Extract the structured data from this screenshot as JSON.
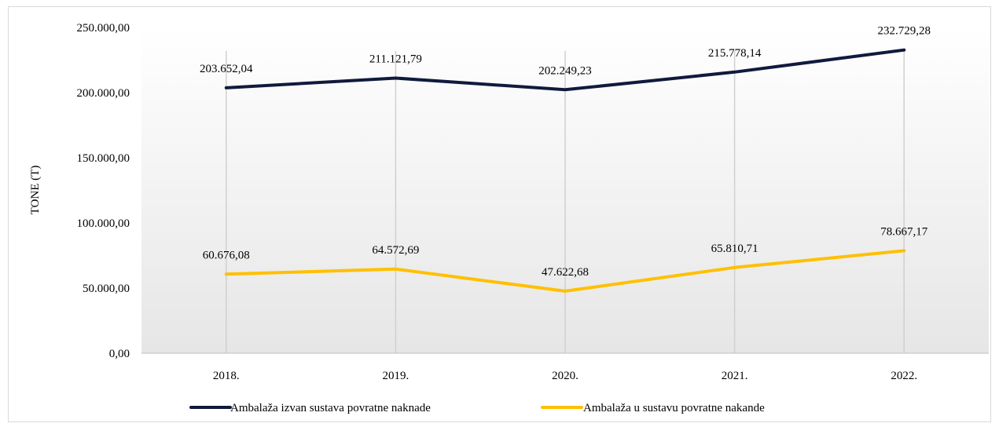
{
  "chart_data": {
    "type": "line",
    "categories": [
      "2018.",
      "2019.",
      "2020.",
      "2021.",
      "2022."
    ],
    "series": [
      {
        "name": "Ambalaža izvan sustava povratne naknade",
        "values": [
          203652.04,
          211121.79,
          202249.23,
          215778.14,
          232729.28
        ],
        "labels": [
          "203.652,04",
          "211.121,79",
          "202.249,23",
          "215.778,14",
          "232.729,28"
        ],
        "color": "#0f1a3d"
      },
      {
        "name": "Ambalaža u sustavu povratne nakande",
        "values": [
          60676.08,
          64572.69,
          47622.68,
          65810.71,
          78667.17
        ],
        "labels": [
          "60.676,08",
          "64.572,69",
          "47.622,68",
          "65.810,71",
          "78.667,17"
        ],
        "color": "#ffc000"
      }
    ],
    "ylabel": "TONE (T)",
    "ylim": [
      0,
      250000
    ],
    "yticks": [
      0,
      50000,
      100000,
      150000,
      200000,
      250000
    ],
    "ytick_labels": [
      "0,00",
      "50.000,00",
      "100.000,00",
      "150.000,00",
      "200.000,00",
      "250.000,00"
    ],
    "grid": "vertical",
    "legend_position": "bottom",
    "plot_background": "gradient-gray"
  }
}
